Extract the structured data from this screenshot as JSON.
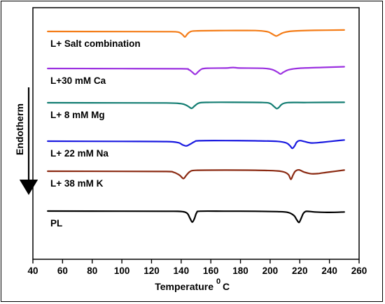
{
  "chart_data": {
    "type": "line",
    "title": "",
    "xlabel": "Temperature",
    "xlabel_unit_sup": "0",
    "xlabel_unit": "C",
    "ylabel": "Endotherm",
    "xlim": [
      40,
      260
    ],
    "xticks": [
      40,
      60,
      80,
      100,
      120,
      140,
      160,
      180,
      200,
      220,
      240,
      260
    ],
    "grid": false,
    "legend": "inline labels above each curve",
    "y_direction": "down = endotherm",
    "series": [
      {
        "name": "L+ Salt combination",
        "color": "#f47c17",
        "points": [
          [
            50,
            0
          ],
          [
            100,
            0.2
          ],
          [
            130,
            0.3
          ],
          [
            138,
            0.9
          ],
          [
            141,
            4.5
          ],
          [
            142.5,
            7.5
          ],
          [
            144,
            4
          ],
          [
            146,
            0.6
          ],
          [
            150,
            -0.8
          ],
          [
            170,
            -1.2
          ],
          [
            190,
            -1.2
          ],
          [
            198,
            0.3
          ],
          [
            201,
            3
          ],
          [
            204,
            6.2
          ],
          [
            206,
            4.6
          ],
          [
            209,
            1.6
          ],
          [
            215,
            -0.5
          ],
          [
            230,
            -1.5
          ],
          [
            250,
            -2
          ]
        ]
      },
      {
        "name": "L+30 mM Ca",
        "color": "#9b30e0",
        "points": [
          [
            50,
            0
          ],
          [
            100,
            0.2
          ],
          [
            140,
            0.4
          ],
          [
            145,
            1.5
          ],
          [
            147.5,
            5
          ],
          [
            149.5,
            8
          ],
          [
            151.5,
            4.4
          ],
          [
            154,
            0.6
          ],
          [
            158,
            -0.4
          ],
          [
            170,
            -0.6
          ],
          [
            175,
            -1.3
          ],
          [
            180,
            -0.6
          ],
          [
            195,
            -0.3
          ],
          [
            201,
            1.2
          ],
          [
            205,
            5
          ],
          [
            207,
            7.5
          ],
          [
            209,
            5
          ],
          [
            213,
            1.5
          ],
          [
            220,
            -0.4
          ],
          [
            235,
            -1.4
          ],
          [
            250,
            -2.4
          ]
        ]
      },
      {
        "name": "L+ 8 mM Mg",
        "color": "#137d72",
        "points": [
          [
            50,
            0
          ],
          [
            100,
            0.2
          ],
          [
            130,
            0.3
          ],
          [
            140,
            1.2
          ],
          [
            144,
            4
          ],
          [
            147,
            7.6
          ],
          [
            149,
            4.5
          ],
          [
            152,
            0.4
          ],
          [
            158,
            -0.5
          ],
          [
            175,
            -0.6
          ],
          [
            195,
            -0.3
          ],
          [
            200,
            1
          ],
          [
            202.5,
            5
          ],
          [
            204.5,
            8
          ],
          [
            206,
            6.2
          ],
          [
            208,
            2
          ],
          [
            212,
            -0.2
          ],
          [
            225,
            -0.3
          ],
          [
            250,
            -0.6
          ]
        ]
      },
      {
        "name": "L+ 22 mM Na",
        "color": "#1a1ae0",
        "points": [
          [
            50,
            0
          ],
          [
            100,
            0.3
          ],
          [
            130,
            0.6
          ],
          [
            138,
            2
          ],
          [
            141,
            5
          ],
          [
            143.5,
            6.5
          ],
          [
            146,
            4.2
          ],
          [
            149,
            0.8
          ],
          [
            152,
            -0.6
          ],
          [
            170,
            -0.8
          ],
          [
            190,
            -0.5
          ],
          [
            205,
            0.3
          ],
          [
            211,
            2.5
          ],
          [
            213.5,
            6.5
          ],
          [
            215,
            9.8
          ],
          [
            216.5,
            6.5
          ],
          [
            218,
            1.2
          ],
          [
            220,
            -0.8
          ],
          [
            223,
            0.4
          ],
          [
            228,
            2.5
          ],
          [
            235,
            1.5
          ],
          [
            245,
            -0.6
          ],
          [
            250,
            -1.6
          ]
        ]
      },
      {
        "name": "L+ 38 mM K",
        "color": "#8b2a12",
        "points": [
          [
            50,
            0
          ],
          [
            100,
            0.2
          ],
          [
            130,
            0.4
          ],
          [
            135,
            1.5
          ],
          [
            139,
            5.5
          ],
          [
            141.5,
            10
          ],
          [
            143.5,
            5.5
          ],
          [
            146,
            0.5
          ],
          [
            150,
            -1.2
          ],
          [
            170,
            -1.5
          ],
          [
            190,
            -1.3
          ],
          [
            205,
            -0.4
          ],
          [
            210,
            1.5
          ],
          [
            212.5,
            5
          ],
          [
            214,
            11
          ],
          [
            215.5,
            5
          ],
          [
            217,
            0
          ],
          [
            219.5,
            -1.8
          ],
          [
            223,
            1.2
          ],
          [
            228,
            3.5
          ],
          [
            233,
            3
          ],
          [
            240,
            1
          ],
          [
            250,
            -1.5
          ]
        ]
      },
      {
        "name": "PL",
        "color": "#000000",
        "points": [
          [
            50,
            0
          ],
          [
            100,
            0.2
          ],
          [
            130,
            0.3
          ],
          [
            140,
            0.6
          ],
          [
            144,
            3
          ],
          [
            146,
            10
          ],
          [
            147.5,
            15
          ],
          [
            149,
            10
          ],
          [
            150.5,
            2
          ],
          [
            153,
            0.2
          ],
          [
            170,
            0.2
          ],
          [
            190,
            0.3
          ],
          [
            205,
            0.8
          ],
          [
            212,
            1.8
          ],
          [
            216,
            6
          ],
          [
            218,
            12
          ],
          [
            219.5,
            15.5
          ],
          [
            221,
            9.5
          ],
          [
            222.5,
            3
          ],
          [
            224.5,
            0.4
          ],
          [
            230,
            1.2
          ],
          [
            240,
            1.8
          ],
          [
            250,
            1.2
          ]
        ]
      }
    ]
  }
}
